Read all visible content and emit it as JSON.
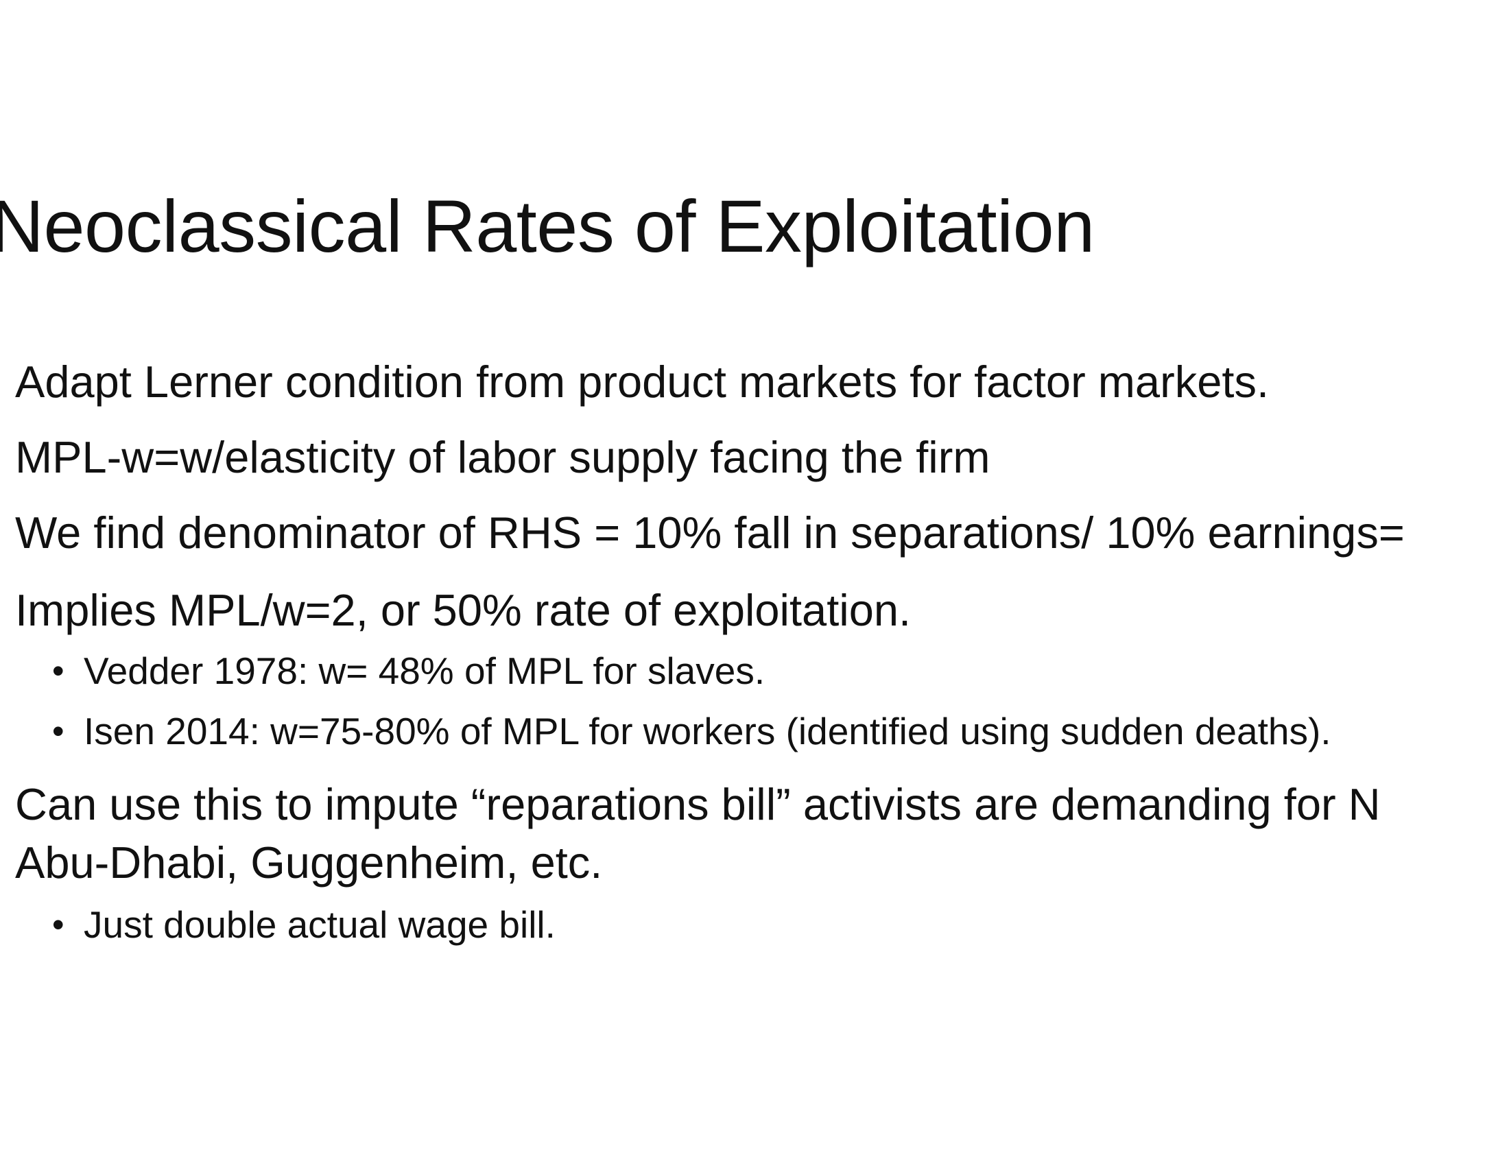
{
  "slide": {
    "title": "Neoclassical Rates of Exploitation",
    "lines": [
      "Adapt Lerner condition from product markets for factor markets.",
      "MPL-w=w/elasticity of labor supply facing the firm",
      "We find denominator of RHS = 10% fall in separations/ 10% earnings=",
      "Implies MPL/w=2, or 50% rate of exploitation.",
      "Vedder 1978: w= 48% of MPL for slaves.",
      "Isen 2014: w=75-80% of MPL for workers (identified using sudden deaths).",
      "Can use this to impute “reparations bill” activists are demanding for N",
      "Abu-Dhabi, Guggenheim, etc.",
      "Just double actual wage bill."
    ],
    "bullet_glyph": "•"
  }
}
